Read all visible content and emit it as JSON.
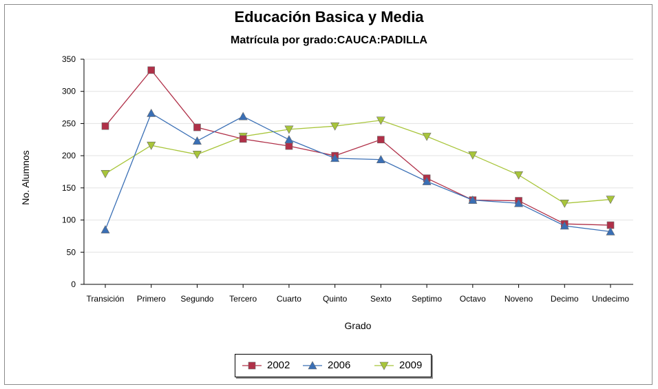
{
  "chart_data": {
    "type": "line",
    "title": "Educación Basica y Media",
    "subtitle": "Matrícula por grado:CAUCA:PADILLA",
    "xlabel": "Grado",
    "ylabel": "No. Alumnos",
    "ylim": [
      0,
      350
    ],
    "yticks": [
      0,
      50,
      100,
      150,
      200,
      250,
      300,
      350
    ],
    "grid": true,
    "legend_position": "bottom",
    "categories": [
      "Transición",
      "Primero",
      "Segundo",
      "Tercero",
      "Cuarto",
      "Quinto",
      "Sexto",
      "Septimo",
      "Octavo",
      "Noveno",
      "Decimo",
      "Undecimo"
    ],
    "series": [
      {
        "name": "2002",
        "color": "#b03048",
        "marker": "square",
        "values": [
          246,
          333,
          244,
          226,
          215,
          200,
          225,
          165,
          131,
          130,
          94,
          92
        ]
      },
      {
        "name": "2006",
        "color": "#3a6fb5",
        "marker": "triangle-up",
        "values": [
          85,
          266,
          223,
          261,
          225,
          196,
          194,
          160,
          131,
          126,
          91,
          82
        ]
      },
      {
        "name": "2009",
        "color": "#a8c53a",
        "marker": "triangle-down",
        "values": [
          172,
          216,
          202,
          230,
          241,
          246,
          255,
          230,
          201,
          170,
          126,
          132
        ]
      }
    ]
  }
}
